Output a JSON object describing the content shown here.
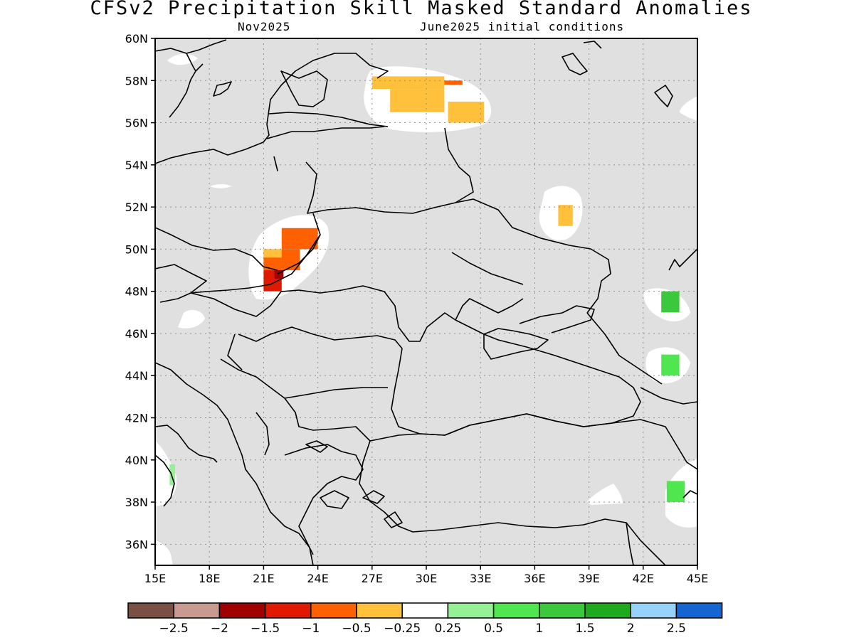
{
  "title": "CFSv2 Precipitation Skill Masked Standard Anomalies",
  "subtitle_left": "Nov2025",
  "subtitle_right": "June2025 initial conditions",
  "map": {
    "lon_range": [
      15,
      45
    ],
    "lat_range": [
      35,
      60
    ],
    "lon_ticks": [
      "15E",
      "18E",
      "21E",
      "24E",
      "27E",
      "30E",
      "33E",
      "36E",
      "39E",
      "42E",
      "45E"
    ],
    "lat_ticks": [
      "60N",
      "58N",
      "56N",
      "54N",
      "52N",
      "50N",
      "48N",
      "46N",
      "44N",
      "42N",
      "40N",
      "38N",
      "36N"
    ],
    "masked_color": "#e0e0e0",
    "anomaly_cells": [
      {
        "lon": 27,
        "lat": 57.6,
        "w": 4,
        "h": 0.6,
        "color": "#ffc03c"
      },
      {
        "lon": 28,
        "lat": 56.5,
        "w": 3,
        "h": 1.1,
        "color": "#ffc03c"
      },
      {
        "lon": 31.2,
        "lat": 56,
        "w": 2,
        "h": 1.0,
        "color": "#ffc03c"
      },
      {
        "lon": 31.0,
        "lat": 57.8,
        "w": 1,
        "h": 0.2,
        "color": "#ff6000"
      },
      {
        "lon": 37.3,
        "lat": 51.1,
        "w": 0.8,
        "h": 1.0,
        "color": "#ffc03c"
      },
      {
        "lon": 22,
        "lat": 50,
        "w": 2,
        "h": 1.0,
        "color": "#ff6000"
      },
      {
        "lon": 21,
        "lat": 49,
        "w": 2,
        "h": 1.0,
        "color": "#ff6000"
      },
      {
        "lon": 21,
        "lat": 49.6,
        "w": 1,
        "h": 0.4,
        "color": "#ffc03c"
      },
      {
        "lon": 21,
        "lat": 48,
        "w": 1,
        "h": 1.0,
        "color": "#e01a00"
      },
      {
        "lon": 21.6,
        "lat": 48.6,
        "w": 0.5,
        "h": 0.4,
        "color": "#a00000"
      },
      {
        "lon": 43,
        "lat": 47,
        "w": 1,
        "h": 1.0,
        "color": "#3cc83c"
      },
      {
        "lon": 43,
        "lat": 44,
        "w": 1,
        "h": 1.0,
        "color": "#50e650"
      },
      {
        "lon": 43.3,
        "lat": 38,
        "w": 1,
        "h": 1.0,
        "color": "#50e650"
      },
      {
        "lon": 15.8,
        "lat": 38.8,
        "w": 0.3,
        "h": 1.0,
        "color": "#96f096"
      }
    ]
  },
  "colorbar": {
    "colors": [
      "#7a5045",
      "#c89a90",
      "#a00000",
      "#e01a00",
      "#ff6000",
      "#ffc03c",
      "#ffffff",
      "#96f096",
      "#50e650",
      "#3cc83c",
      "#1eaa1e",
      "#96d2fa",
      "#1464d2"
    ],
    "labels": [
      "−2.5",
      "−2",
      "−1.5",
      "−1",
      "−0.5",
      "−0.25",
      "0.25",
      "0.5",
      "1",
      "1.5",
      "2",
      "2.5"
    ]
  }
}
